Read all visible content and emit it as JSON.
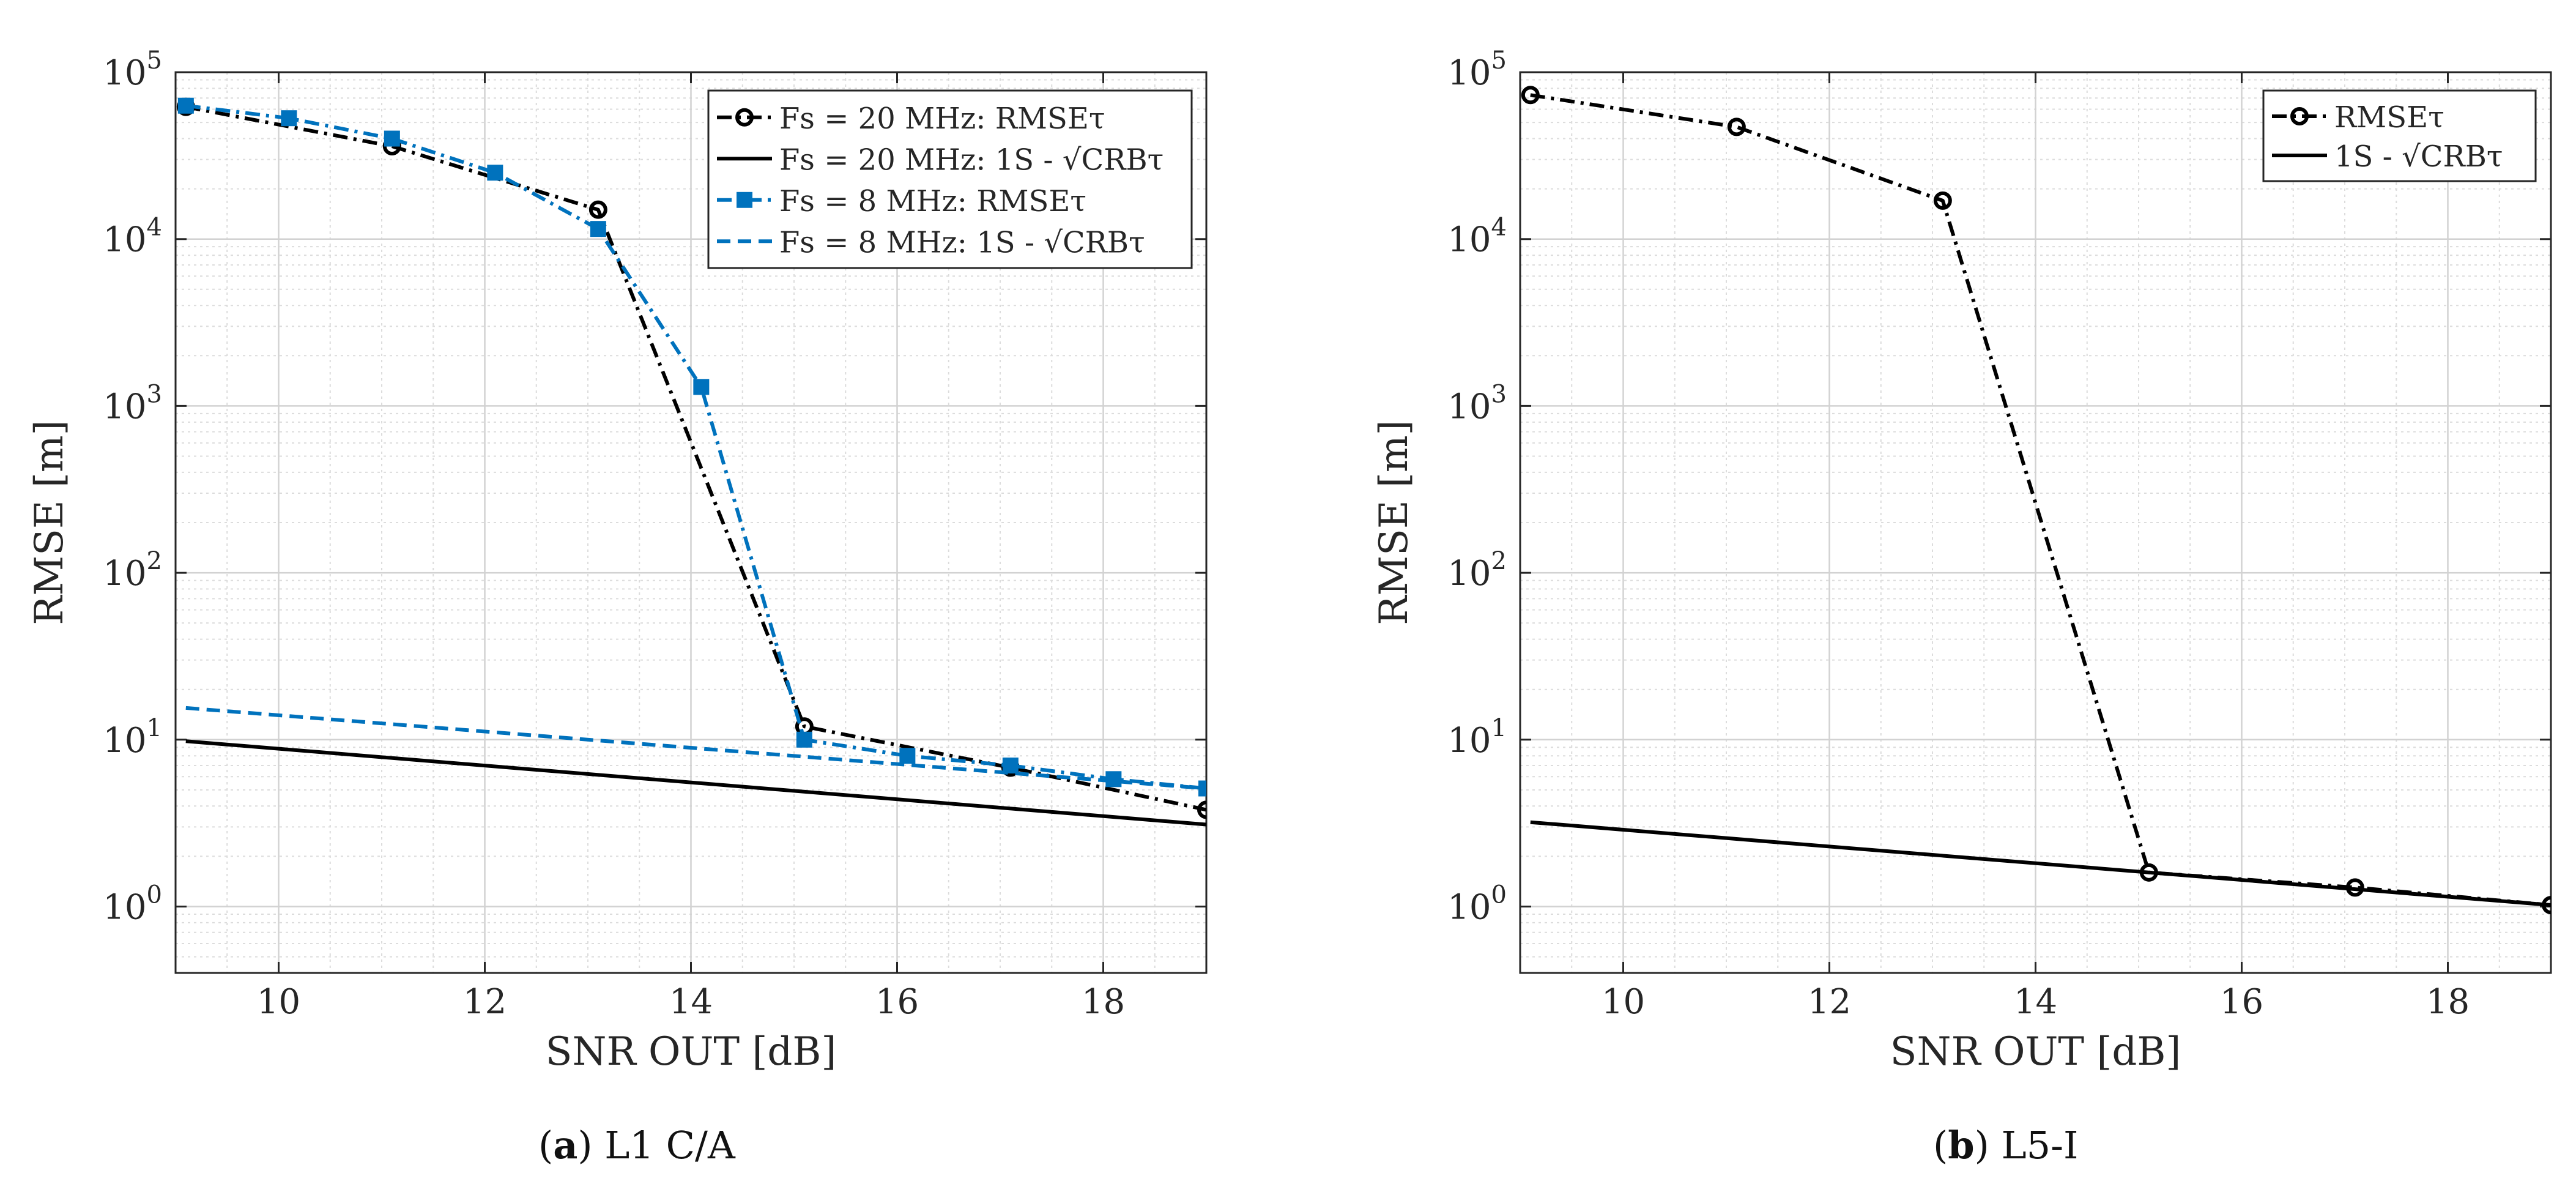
{
  "chart_data": [
    {
      "type": "line",
      "panel": "a",
      "caption_label": "a",
      "caption_text": "L1 C/A",
      "xlabel": "SNR OUT [dB]",
      "ylabel": "RMSE [m]",
      "xlim": [
        9,
        19
      ],
      "ylim": [
        0.4,
        100000
      ],
      "yscale": "log",
      "grid": true,
      "legend_position": "top-right",
      "x_ticks": [
        10,
        12,
        14,
        16,
        18
      ],
      "y_ticks": [
        {
          "value": 1,
          "base": "10",
          "exp": "0"
        },
        {
          "value": 10,
          "base": "10",
          "exp": "1"
        },
        {
          "value": 100,
          "base": "10",
          "exp": "2"
        },
        {
          "value": 1000,
          "base": "10",
          "exp": "3"
        },
        {
          "value": 10000,
          "base": "10",
          "exp": "4"
        },
        {
          "value": 100000,
          "base": "10",
          "exp": "5"
        }
      ],
      "series": [
        {
          "name": "F_s = 20 MHz: RMSEτ",
          "legend_main": "Fs = 20 MHz: RMSEτ",
          "color": "#000000",
          "style": "dashdot",
          "marker": "circle",
          "x": [
            9.1,
            11.1,
            13.1,
            15.1,
            17.1,
            19.0
          ],
          "y": [
            62000,
            36000,
            15000,
            12,
            6.8,
            3.8
          ]
        },
        {
          "name": "F_s = 20 MHz: 1S - √CRBτ",
          "legend_main": "Fs = 20 MHz: 1S - √CRBτ",
          "color": "#000000",
          "style": "solid",
          "marker": "none",
          "x": [
            9.1,
            19.0
          ],
          "y": [
            9.8,
            3.1
          ]
        },
        {
          "name": "F_s = 8 MHz: RMSEτ",
          "legend_main": "Fs = 8 MHz: RMSEτ",
          "color": "#0072BD",
          "style": "dashdot",
          "marker": "square",
          "x": [
            9.1,
            10.1,
            11.1,
            12.1,
            13.1,
            14.1,
            15.1,
            16.1,
            17.1,
            18.1,
            19.0
          ],
          "y": [
            63000,
            53000,
            40000,
            25000,
            11500,
            1300,
            10,
            8,
            7,
            5.8,
            5.1
          ]
        },
        {
          "name": "F_s = 8 MHz: 1S - √CRBτ",
          "legend_main": "Fs = 8 MHz: 1S - √CRBτ",
          "color": "#0072BD",
          "style": "dashed",
          "marker": "none",
          "x": [
            9.1,
            19.0
          ],
          "y": [
            15.5,
            5.1
          ]
        }
      ]
    },
    {
      "type": "line",
      "panel": "b",
      "caption_label": "b",
      "caption_text": "L5-I",
      "xlabel": "SNR OUT [dB]",
      "ylabel": "RMSE [m]",
      "xlim": [
        9,
        19
      ],
      "ylim": [
        0.4,
        100000
      ],
      "yscale": "log",
      "grid": true,
      "legend_position": "top-right",
      "x_ticks": [
        10,
        12,
        14,
        16,
        18
      ],
      "y_ticks": [
        {
          "value": 1,
          "base": "10",
          "exp": "0"
        },
        {
          "value": 10,
          "base": "10",
          "exp": "1"
        },
        {
          "value": 100,
          "base": "10",
          "exp": "2"
        },
        {
          "value": 1000,
          "base": "10",
          "exp": "3"
        },
        {
          "value": 10000,
          "base": "10",
          "exp": "4"
        },
        {
          "value": 100000,
          "base": "10",
          "exp": "5"
        }
      ],
      "series": [
        {
          "name": "RMSEτ",
          "legend_main": "RMSEτ",
          "color": "#000000",
          "style": "dashdot",
          "marker": "circle",
          "x": [
            9.1,
            11.1,
            13.1,
            15.1,
            17.1,
            19.0
          ],
          "y": [
            73000,
            47000,
            17000,
            1.6,
            1.3,
            1.02
          ]
        },
        {
          "name": "1S - √CRBτ",
          "legend_main": "1S - √CRBτ",
          "color": "#000000",
          "style": "solid",
          "marker": "none",
          "x": [
            9.1,
            19.0
          ],
          "y": [
            3.2,
            1.02
          ]
        }
      ]
    }
  ]
}
